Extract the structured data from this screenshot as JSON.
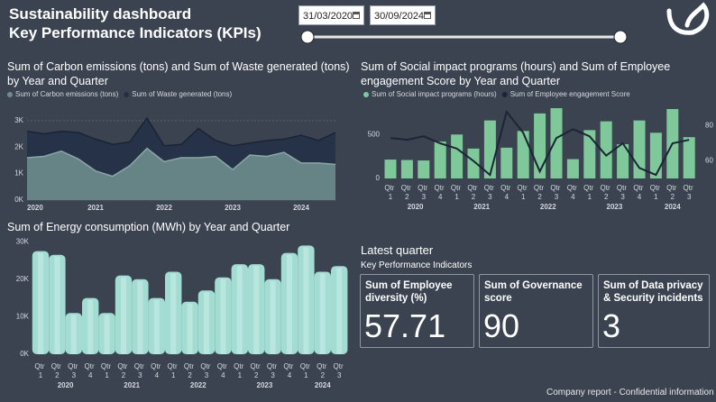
{
  "header": {
    "title": [
      "Sustainability dashboard",
      "Key Performance Indicators (KPIs)"
    ],
    "start_date": "31/03/2020",
    "end_date": "30/09/2024"
  },
  "chart_data": [
    {
      "type": "area",
      "title": "Sum of Carbon emissions (tons) and Sum of Waste generated (tons) by Year and Quarter",
      "categories": [
        "2020",
        null,
        null,
        null,
        "2021",
        null,
        null,
        null,
        "2022",
        null,
        null,
        null,
        "2023",
        null,
        null,
        null,
        "2024",
        null,
        null
      ],
      "series": [
        {
          "name": "Sum of Carbon emissions (tons)",
          "color": "#6e8c8d",
          "values": [
            1600,
            1650,
            1850,
            1550,
            1100,
            900,
            1300,
            1950,
            1450,
            1600,
            1600,
            1650,
            1150,
            1700,
            1650,
            1800,
            1400,
            1400,
            1350
          ]
        },
        {
          "name": "Sum of Waste generated (tons)",
          "color": "#233147",
          "values": [
            2600,
            2500,
            2600,
            2550,
            2300,
            2100,
            2200,
            3100,
            2050,
            2100,
            2700,
            2250,
            2050,
            2150,
            2250,
            2300,
            2450,
            2250,
            2550
          ]
        }
      ],
      "ylim": [
        0,
        3300
      ],
      "yticks": [
        {
          "value": 0,
          "label": "0K"
        },
        {
          "value": 1000,
          "label": "1K"
        },
        {
          "value": 2000,
          "label": "2K"
        },
        {
          "value": 3000,
          "label": "3K"
        }
      ],
      "grid": true
    },
    {
      "type": "combo",
      "title": "Sum of Social impact programs (hours) and Sum of Employee engagement Score by Year and Quarter",
      "categories": [
        "Qtr 1",
        "Qtr 2",
        "Qtr 3",
        "Qtr 4",
        "Qtr 1",
        "Qtr 2",
        "Qtr 3",
        "Qtr 4",
        "Qtr 1",
        "Qtr 2",
        "Qtr 3",
        "Qtr 4",
        "Qtr 1",
        "Qtr 2",
        "Qtr 3",
        "Qtr 4",
        "Qtr 1",
        "Qtr 2",
        "Qtr 3"
      ],
      "year_labels": [
        "2020",
        "2021",
        "2022",
        "2023",
        "2024"
      ],
      "series": [
        {
          "name": "Sum of Social impact programs (hours)",
          "color": "#7fc89a",
          "values": [
            215,
            210,
            205,
            420,
            500,
            340,
            660,
            350,
            540,
            740,
            800,
            220,
            550,
            650,
            390,
            660,
            520,
            790,
            470
          ]
        },
        {
          "name": "Sum of Employee engagement Score",
          "color": "#1b2535",
          "axis": "y2",
          "values": [
            73,
            72,
            74,
            70,
            67,
            60,
            52,
            88,
            76,
            54,
            73,
            78,
            74,
            63,
            70,
            56,
            52,
            70,
            72
          ]
        }
      ],
      "ylim": [
        0,
        800
      ],
      "yticks": [
        0,
        500
      ],
      "y2lim": [
        50,
        90
      ],
      "y2ticks": [
        60,
        80
      ]
    },
    {
      "type": "bar",
      "title": "Sum of Energy consumption (MWh) by Year and Quarter",
      "categories": [
        "Qtr 1",
        "Qtr 2",
        "Qtr 3",
        "Qtr 4",
        "Qtr 1",
        "Qtr 2",
        "Qtr 3",
        "Qtr 4",
        "Qtr 1",
        "Qtr 2",
        "Qtr 3",
        "Qtr 4",
        "Qtr 1",
        "Qtr 2",
        "Qtr 3",
        "Qtr 4",
        "Qtr 1",
        "Qtr 2",
        "Qtr 3"
      ],
      "year_labels": [
        "2020",
        "2021",
        "2022",
        "2023",
        "2024"
      ],
      "values": [
        27500,
        26500,
        11000,
        15000,
        11000,
        21000,
        20000,
        15000,
        22000,
        14000,
        17000,
        20500,
        24000,
        24000,
        20000,
        27000,
        29000,
        22000,
        23500
      ],
      "color": "#a3dcd3",
      "ylim": [
        0,
        31000
      ],
      "yticks": [
        {
          "value": 0,
          "label": "0K"
        },
        {
          "value": 10000,
          "label": "10K"
        },
        {
          "value": 20000,
          "label": "20K"
        },
        {
          "value": 30000,
          "label": "30K"
        }
      ]
    }
  ],
  "kpi": {
    "heading": "Latest quarter",
    "subheading": "Key Performance Indicators",
    "cards": [
      {
        "title": "Sum of Employee diversity (%)",
        "value": 57.71
      },
      {
        "title": "Sum of Governance score",
        "value": 90
      },
      {
        "title": "Sum of Data privacy & Security incidents",
        "value": 3
      }
    ]
  },
  "footer": "Company report - Confidential information"
}
